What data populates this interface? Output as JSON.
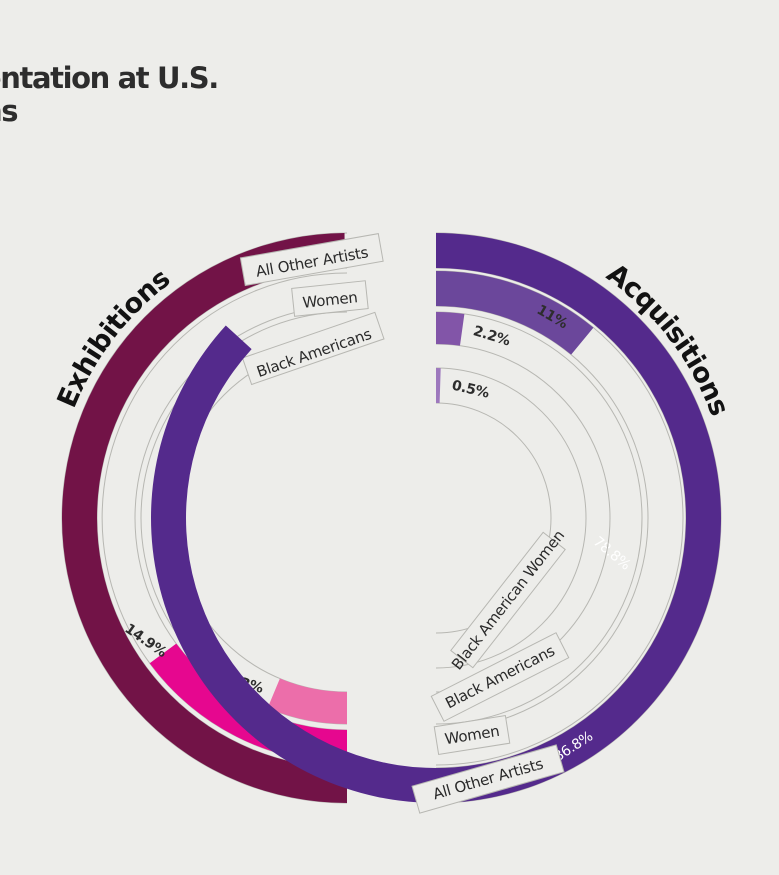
{
  "title_lines": [
    "entation at U.S.",
    "ns"
  ],
  "chart_data": [
    {
      "type": "radial-bar",
      "title": "Exhibitions",
      "categories": [
        "All Other Artists",
        "Women",
        "Black Americans"
      ],
      "values": [
        78.8,
        14.9,
        6.3
      ],
      "labels": [
        "78.8%",
        "14.9%",
        "6.3%"
      ],
      "colors": [
        "#721347",
        "#e6078f",
        "#ec6eaa"
      ]
    },
    {
      "type": "radial-bar",
      "title": "Acquisitions",
      "categories": [
        "All Other Artists",
        "Women",
        "Black Americans",
        "Black American Women"
      ],
      "values": [
        86.8,
        11,
        2.2,
        0.5
      ],
      "labels": [
        "86.8%",
        "11%",
        "2.2%",
        "0.5%"
      ],
      "colors": [
        "#542a8c",
        "#6b479b",
        "#8255a8",
        "#9d78bd"
      ]
    }
  ]
}
